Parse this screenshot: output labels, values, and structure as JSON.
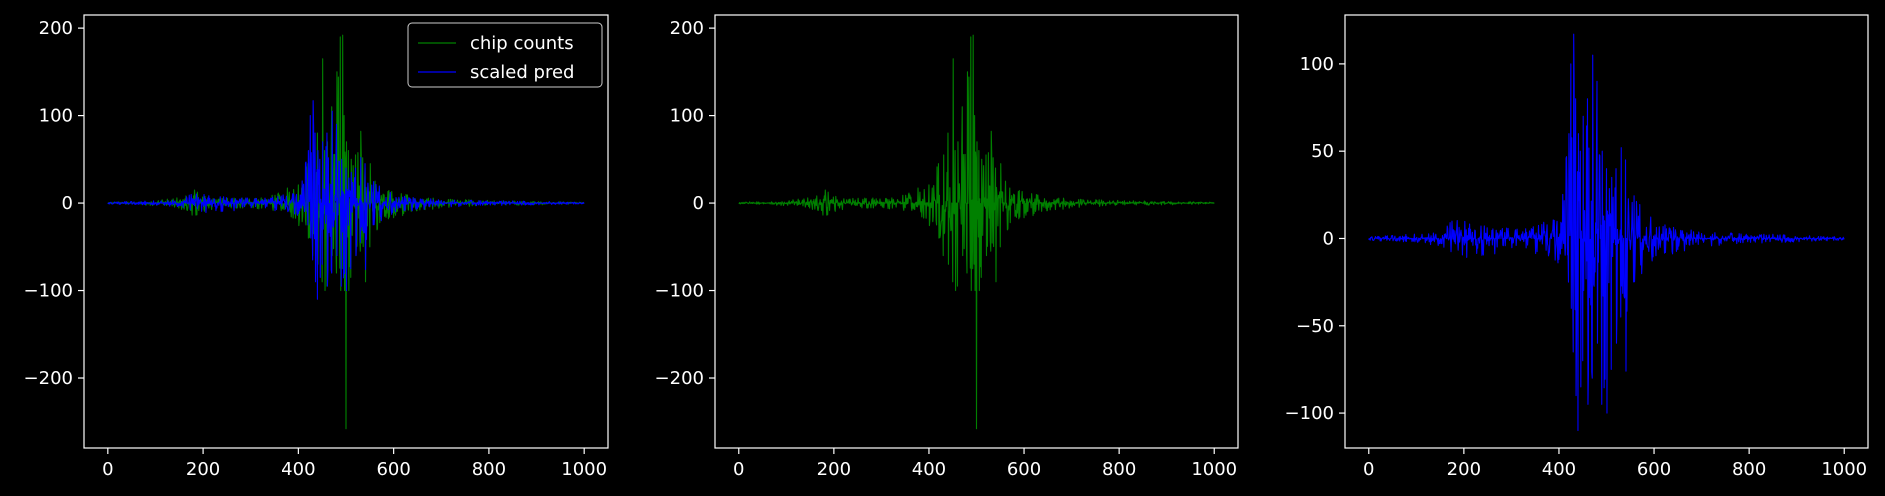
{
  "colors": {
    "background": "#000000",
    "axes": "#ffffff",
    "counts": "#008000",
    "pred": "#0000ff"
  },
  "chart_data": [
    {
      "type": "line",
      "xlim": [
        -50,
        1050
      ],
      "ylim": [
        -280,
        215
      ],
      "xticks": [
        0,
        200,
        400,
        600,
        800,
        1000
      ],
      "yticks": [
        -200,
        -100,
        0,
        100,
        200
      ],
      "xtick_labels": [
        "0",
        "200",
        "400",
        "600",
        "800",
        "1000"
      ],
      "ytick_labels": [
        "−200",
        "−100",
        "0",
        "100",
        "200"
      ],
      "legend": {
        "placement": "top-right",
        "entries": [
          "chip counts",
          "scaled pred"
        ]
      },
      "series": [
        {
          "name": "chip counts",
          "color": "#008000",
          "x": [
            0,
            60,
            120,
            160,
            175,
            180,
            185,
            190,
            195,
            200,
            230,
            300,
            360,
            400,
            420,
            430,
            440,
            450,
            455,
            460,
            470,
            480,
            488,
            492,
            496,
            500,
            505,
            510,
            520,
            530,
            540,
            550,
            560,
            580,
            600,
            650,
            700,
            800,
            900,
            1000
          ],
          "max": [
            1,
            2,
            4,
            8,
            25,
            35,
            20,
            10,
            8,
            8,
            6,
            6,
            12,
            30,
            45,
            55,
            80,
            165,
            60,
            70,
            110,
            150,
            190,
            192,
            100,
            70,
            60,
            50,
            55,
            82,
            40,
            45,
            30,
            20,
            12,
            8,
            5,
            3,
            2,
            1
          ],
          "min": [
            -1,
            -2,
            -4,
            -8,
            -12,
            -25,
            -30,
            -18,
            -12,
            -10,
            -8,
            -6,
            -10,
            -25,
            -40,
            -60,
            -70,
            -90,
            -100,
            -95,
            -60,
            -80,
            -100,
            -75,
            -100,
            -258,
            -100,
            -85,
            -60,
            -55,
            -90,
            -50,
            -40,
            -25,
            -18,
            -10,
            -6,
            -3,
            -2,
            -1
          ]
        },
        {
          "name": "scaled pred",
          "color": "#0000ff",
          "x": [
            0,
            60,
            120,
            160,
            180,
            190,
            200,
            230,
            300,
            360,
            400,
            420,
            425,
            430,
            435,
            440,
            445,
            450,
            460,
            470,
            480,
            490,
            500,
            510,
            520,
            530,
            540,
            550,
            560,
            580,
            600,
            650,
            700,
            800,
            900,
            1000
          ],
          "max": [
            1,
            2,
            3,
            6,
            12,
            14,
            10,
            8,
            6,
            8,
            15,
            60,
            100,
            117,
            80,
            60,
            50,
            70,
            80,
            105,
            90,
            50,
            40,
            35,
            40,
            52,
            45,
            30,
            25,
            18,
            10,
            6,
            4,
            3,
            2,
            1
          ],
          "min": [
            -1,
            -2,
            -3,
            -6,
            -10,
            -15,
            -12,
            -10,
            -8,
            -10,
            -15,
            -25,
            -40,
            -65,
            -90,
            -110,
            -85,
            -70,
            -95,
            -80,
            -60,
            -95,
            -100,
            -75,
            -60,
            -45,
            -76,
            -35,
            -30,
            -20,
            -12,
            -8,
            -5,
            -3,
            -2,
            -1
          ]
        }
      ]
    },
    {
      "type": "line",
      "xlim": [
        -50,
        1050
      ],
      "ylim": [
        -280,
        215
      ],
      "xticks": [
        0,
        200,
        400,
        600,
        800,
        1000
      ],
      "yticks": [
        -200,
        -100,
        0,
        100,
        200
      ],
      "xtick_labels": [
        "0",
        "200",
        "400",
        "600",
        "800",
        "1000"
      ],
      "ytick_labels": [
        "−200",
        "−100",
        "0",
        "100",
        "200"
      ],
      "series": [
        {
          "name": "chip counts",
          "color": "#008000",
          "x": [
            0,
            60,
            120,
            160,
            175,
            180,
            185,
            190,
            195,
            200,
            230,
            300,
            360,
            400,
            420,
            430,
            440,
            450,
            455,
            460,
            470,
            480,
            488,
            492,
            496,
            500,
            505,
            510,
            520,
            530,
            540,
            550,
            560,
            580,
            600,
            650,
            700,
            800,
            900,
            1000
          ],
          "max": [
            1,
            2,
            4,
            8,
            25,
            35,
            20,
            10,
            8,
            8,
            6,
            6,
            12,
            30,
            45,
            55,
            80,
            165,
            60,
            70,
            110,
            150,
            190,
            192,
            100,
            70,
            60,
            50,
            55,
            82,
            40,
            45,
            30,
            20,
            12,
            8,
            5,
            3,
            2,
            1
          ],
          "min": [
            -1,
            -2,
            -4,
            -8,
            -12,
            -25,
            -30,
            -18,
            -12,
            -10,
            -8,
            -6,
            -10,
            -25,
            -40,
            -60,
            -70,
            -90,
            -100,
            -95,
            -60,
            -80,
            -100,
            -75,
            -100,
            -258,
            -100,
            -85,
            -60,
            -55,
            -90,
            -50,
            -40,
            -25,
            -18,
            -10,
            -6,
            -3,
            -2,
            -1
          ]
        }
      ]
    },
    {
      "type": "line",
      "xlim": [
        -50,
        1050
      ],
      "ylim": [
        -120,
        128
      ],
      "xticks": [
        0,
        200,
        400,
        600,
        800,
        1000
      ],
      "yticks": [
        -100,
        -50,
        0,
        50,
        100
      ],
      "xtick_labels": [
        "0",
        "200",
        "400",
        "600",
        "800",
        "1000"
      ],
      "ytick_labels": [
        "−100",
        "−50",
        "0",
        "50",
        "100"
      ],
      "series": [
        {
          "name": "scaled pred",
          "color": "#0000ff",
          "x": [
            0,
            60,
            120,
            160,
            180,
            190,
            200,
            230,
            300,
            360,
            400,
            420,
            425,
            430,
            435,
            440,
            445,
            450,
            460,
            470,
            480,
            490,
            500,
            510,
            520,
            530,
            540,
            550,
            560,
            580,
            600,
            650,
            700,
            800,
            900,
            1000
          ],
          "max": [
            1,
            2,
            3,
            6,
            12,
            14,
            10,
            8,
            6,
            8,
            15,
            60,
            100,
            117,
            80,
            60,
            50,
            70,
            80,
            105,
            90,
            50,
            40,
            35,
            40,
            52,
            45,
            30,
            25,
            18,
            10,
            6,
            4,
            3,
            2,
            1
          ],
          "min": [
            -1,
            -2,
            -3,
            -6,
            -10,
            -15,
            -12,
            -10,
            -8,
            -10,
            -15,
            -25,
            -40,
            -65,
            -90,
            -110,
            -85,
            -70,
            -95,
            -80,
            -60,
            -95,
            -100,
            -75,
            -60,
            -45,
            -76,
            -35,
            -30,
            -20,
            -12,
            -8,
            -5,
            -3,
            -2,
            -1
          ]
        }
      ]
    }
  ]
}
